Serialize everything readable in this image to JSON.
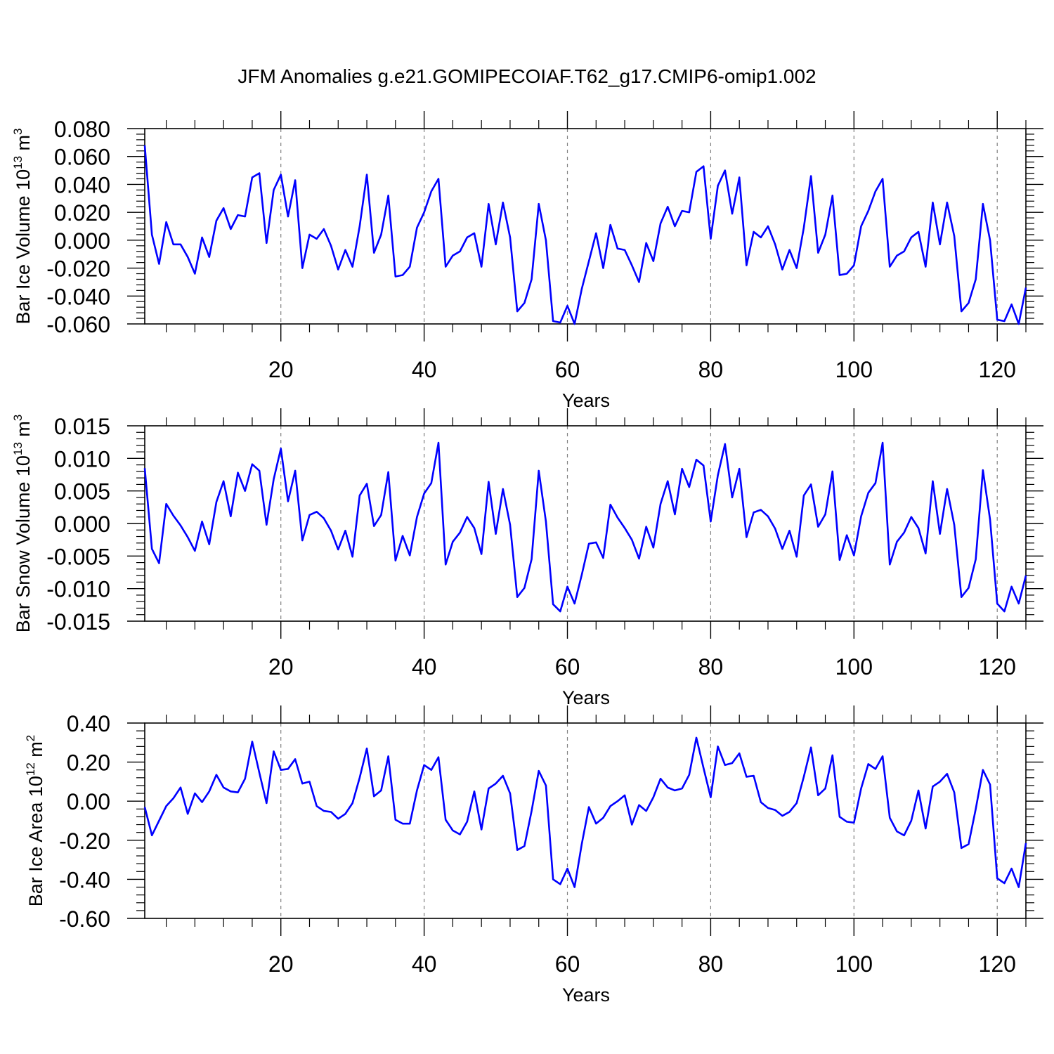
{
  "title": "JFM Anomalies g.e21.GOMIPECOIAF.T62_g17.CMIP6-omip1.002",
  "colors": {
    "line": "#0000ff",
    "axis": "#000000",
    "grid": "#808080"
  },
  "chart_data": [
    {
      "type": "line",
      "ylabel_main": "Bar Ice Volume 10",
      "ylabel_exp": "13",
      "ylabel_unit": " m",
      "ylabel_unit_exp": "3",
      "xlabel": "Years",
      "xlim": [
        1,
        124
      ],
      "ylim": [
        -0.06,
        0.08
      ],
      "yticks": [
        -0.06,
        -0.04,
        -0.02,
        0.0,
        0.02,
        0.04,
        0.06,
        0.08
      ],
      "ytick_labels": [
        "-0.060",
        "-0.040",
        "-0.020",
        "0.000",
        "0.020",
        "0.040",
        "0.060",
        "0.080"
      ],
      "xticks": [
        20,
        40,
        60,
        80,
        100,
        120
      ],
      "xtick_labels": [
        "20",
        "40",
        "60",
        "80",
        "100",
        "120"
      ],
      "x_start": 1,
      "values": [
        0.068,
        0.004,
        -0.017,
        0.013,
        -0.003,
        -0.003,
        -0.012,
        -0.024,
        0.002,
        -0.012,
        0.014,
        0.023,
        0.008,
        0.018,
        0.017,
        0.045,
        0.048,
        -0.002,
        0.036,
        0.047,
        0.017,
        0.043,
        -0.02,
        0.004,
        0.001,
        0.008,
        -0.004,
        -0.021,
        -0.007,
        -0.019,
        0.01,
        0.047,
        -0.009,
        0.004,
        0.032,
        -0.026,
        -0.025,
        -0.019,
        0.009,
        0.02,
        0.035,
        0.044,
        -0.019,
        -0.011,
        -0.008,
        0.002,
        0.005,
        -0.019,
        0.026,
        -0.003,
        0.027,
        0.002,
        -0.051,
        -0.045,
        -0.028,
        0.026,
        0.0,
        -0.058,
        -0.059,
        -0.047,
        -0.06,
        -0.035,
        -0.015,
        0.005,
        -0.02,
        0.011,
        -0.006,
        -0.007,
        -0.018,
        -0.03,
        -0.002,
        -0.015,
        0.012,
        0.024,
        0.01,
        0.021,
        0.02,
        0.049,
        0.053,
        0.001,
        0.039,
        0.05,
        0.019,
        0.045,
        -0.018,
        0.006,
        0.002,
        0.01,
        -0.003,
        -0.021,
        -0.007,
        -0.02,
        0.009,
        0.046,
        -0.009,
        0.004,
        0.032,
        -0.025,
        -0.024,
        -0.018,
        0.01,
        0.021,
        0.035,
        0.044,
        -0.019,
        -0.011,
        -0.008,
        0.002,
        0.006,
        -0.019,
        0.027,
        -0.003,
        0.027,
        0.003,
        -0.051,
        -0.045,
        -0.028,
        0.026,
        0.0,
        -0.057,
        -0.058,
        -0.046,
        -0.06,
        -0.034
      ]
    },
    {
      "type": "line",
      "ylabel_main": "Bar Snow Volume 10",
      "ylabel_exp": "13",
      "ylabel_unit": " m",
      "ylabel_unit_exp": "3",
      "xlabel": "Years",
      "xlim": [
        1,
        124
      ],
      "ylim": [
        -0.015,
        0.015
      ],
      "yticks": [
        -0.015,
        -0.01,
        -0.005,
        0.0,
        0.005,
        0.01,
        0.015
      ],
      "ytick_labels": [
        "-0.015",
        "-0.010",
        "-0.005",
        "0.000",
        "0.005",
        "0.010",
        "0.015"
      ],
      "xticks": [
        20,
        40,
        60,
        80,
        100,
        120
      ],
      "xtick_labels": [
        "20",
        "40",
        "60",
        "80",
        "100",
        "120"
      ],
      "x_start": 1,
      "values": [
        0.0085,
        -0.0039,
        -0.0061,
        0.003,
        0.0012,
        -0.0003,
        -0.0021,
        -0.0042,
        0.0003,
        -0.0032,
        0.0033,
        0.0065,
        0.0011,
        0.0078,
        0.005,
        0.0091,
        0.0081,
        -0.0002,
        0.0068,
        0.0115,
        0.0034,
        0.0081,
        -0.0026,
        0.0013,
        0.0018,
        0.0008,
        -0.0011,
        -0.004,
        -0.0011,
        -0.0051,
        0.0043,
        0.0061,
        -0.0004,
        0.0013,
        0.0079,
        -0.0057,
        -0.0019,
        -0.0049,
        0.001,
        0.0046,
        0.0062,
        0.0124,
        -0.0063,
        -0.0028,
        -0.0014,
        0.001,
        -0.0007,
        -0.0047,
        0.0064,
        -0.0016,
        0.0053,
        -0.0002,
        -0.0113,
        -0.0099,
        -0.0055,
        0.0081,
        0.0003,
        -0.0124,
        -0.0135,
        -0.0097,
        -0.0123,
        -0.0079,
        -0.0031,
        -0.0029,
        -0.0053,
        0.0029,
        0.0009,
        -0.0007,
        -0.0025,
        -0.0054,
        -0.0005,
        -0.0037,
        0.003,
        0.0065,
        0.0014,
        0.0084,
        0.0056,
        0.0098,
        0.0089,
        0.0003,
        0.0074,
        0.0122,
        0.004,
        0.0084,
        -0.0021,
        0.0017,
        0.0021,
        0.0011,
        -0.0008,
        -0.0039,
        -0.0011,
        -0.0051,
        0.0043,
        0.006,
        -0.0005,
        0.0014,
        0.008,
        -0.0056,
        -0.0018,
        -0.0049,
        0.0011,
        0.0047,
        0.0062,
        0.0124,
        -0.0063,
        -0.0028,
        -0.0014,
        0.001,
        -0.0007,
        -0.0046,
        0.0065,
        -0.0016,
        0.0053,
        -0.0002,
        -0.0113,
        -0.0099,
        -0.0055,
        0.0082,
        0.0006,
        -0.0123,
        -0.0135,
        -0.0097,
        -0.0123,
        -0.008
      ]
    },
    {
      "type": "line",
      "ylabel_main": "Bar Ice Area 10",
      "ylabel_exp": "12",
      "ylabel_unit": " m",
      "ylabel_unit_exp": "2",
      "xlabel": "Years",
      "xlim": [
        1,
        124
      ],
      "ylim": [
        -0.6,
        0.4
      ],
      "yticks": [
        -0.6,
        -0.4,
        -0.2,
        0.0,
        0.2,
        0.4
      ],
      "ytick_labels": [
        "-0.60",
        "-0.40",
        "-0.20",
        "0.00",
        "0.20",
        "0.40"
      ],
      "xticks": [
        20,
        40,
        60,
        80,
        100,
        120
      ],
      "xtick_labels": [
        "20",
        "40",
        "60",
        "80",
        "100",
        "120"
      ],
      "x_start": 1,
      "values": [
        -0.03,
        -0.175,
        -0.1,
        -0.025,
        0.015,
        0.07,
        -0.065,
        0.04,
        -0.005,
        0.05,
        0.135,
        0.07,
        0.05,
        0.045,
        0.115,
        0.305,
        0.145,
        -0.01,
        0.255,
        0.16,
        0.165,
        0.215,
        0.09,
        0.1,
        -0.025,
        -0.05,
        -0.055,
        -0.09,
        -0.065,
        -0.01,
        0.12,
        0.27,
        0.025,
        0.055,
        0.23,
        -0.095,
        -0.115,
        -0.115,
        0.055,
        0.185,
        0.16,
        0.225,
        -0.095,
        -0.15,
        -0.17,
        -0.105,
        0.05,
        -0.145,
        0.065,
        0.09,
        0.13,
        0.04,
        -0.25,
        -0.23,
        -0.05,
        0.155,
        0.08,
        -0.4,
        -0.425,
        -0.345,
        -0.44,
        -0.22,
        -0.03,
        -0.115,
        -0.085,
        -0.025,
        0.0,
        0.03,
        -0.12,
        -0.02,
        -0.05,
        0.02,
        0.115,
        0.07,
        0.055,
        0.065,
        0.135,
        0.325,
        0.17,
        0.02,
        0.28,
        0.185,
        0.195,
        0.245,
        0.125,
        0.13,
        -0.005,
        -0.035,
        -0.045,
        -0.075,
        -0.055,
        -0.01,
        0.125,
        0.275,
        0.03,
        0.065,
        0.235,
        -0.08,
        -0.105,
        -0.11,
        0.065,
        0.19,
        0.165,
        0.23,
        -0.085,
        -0.155,
        -0.175,
        -0.1,
        0.055,
        -0.14,
        0.075,
        0.1,
        0.14,
        0.045,
        -0.24,
        -0.22,
        -0.04,
        0.16,
        0.085,
        -0.395,
        -0.42,
        -0.345,
        -0.44,
        -0.215
      ]
    }
  ]
}
